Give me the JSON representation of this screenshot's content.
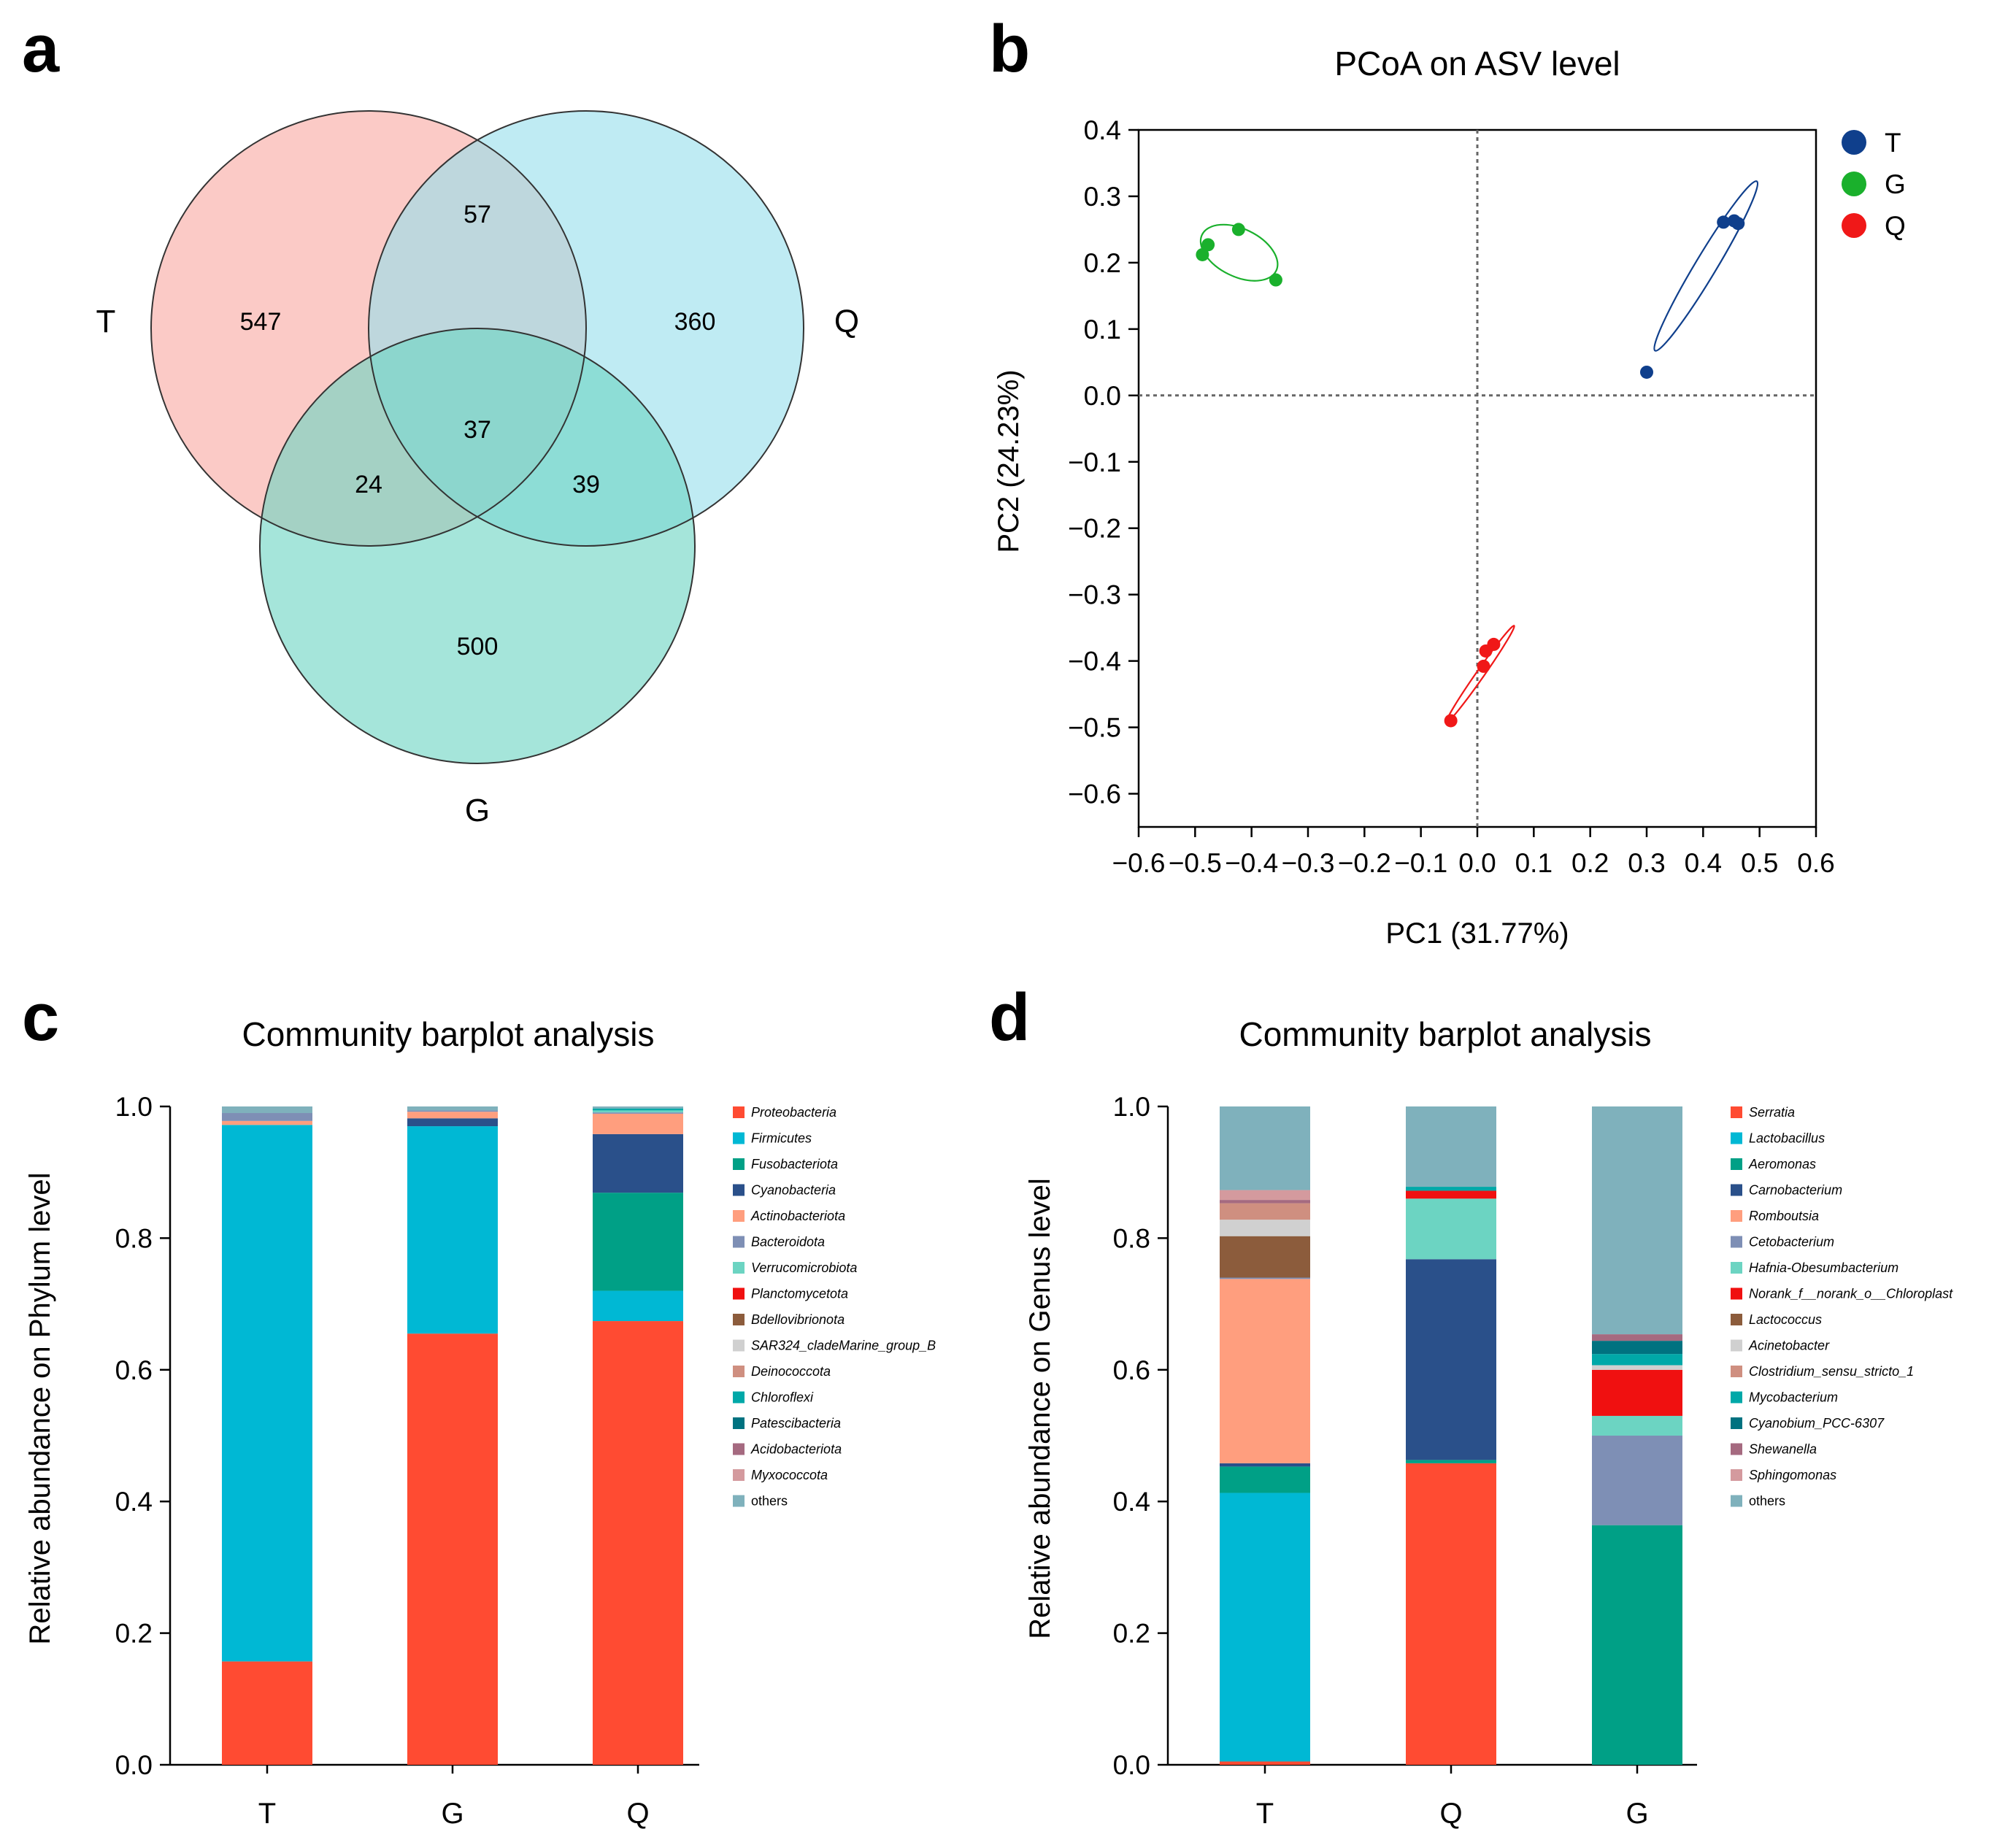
{
  "panels": {
    "a": {
      "letter": "a",
      "venn": {
        "sets": [
          {
            "label": "T",
            "color": "#F9A9A3"
          },
          {
            "label": "Q",
            "color": "#98DFEB"
          },
          {
            "label": "G",
            "color": "#6DD5C4"
          }
        ],
        "regions": {
          "T_only": "547",
          "Q_only": "360",
          "G_only": "500",
          "T_Q": "57",
          "T_G": "24",
          "Q_G": "39",
          "T_Q_G": "37"
        }
      }
    },
    "b": {
      "letter": "b",
      "chart_data": {
        "type": "scatter",
        "title": "PCoA on ASV level",
        "xlabel": "PC1 (31.77%)",
        "ylabel": "PC2 (24.23%)",
        "xlim": [
          -0.6,
          0.6
        ],
        "ylim": [
          -0.65,
          0.4
        ],
        "xticks": [
          -0.6,
          -0.5,
          -0.4,
          -0.3,
          -0.2,
          -0.1,
          0.0,
          0.1,
          0.2,
          0.3,
          0.4,
          0.5,
          0.6
        ],
        "xtick_labels": [
          "−0.6",
          "−0.5",
          "−0.4",
          "−0.3",
          "−0.2",
          "−0.1",
          "0.0",
          "0.1",
          "0.2",
          "0.3",
          "0.4",
          "0.5",
          "0.6"
        ],
        "yticks": [
          0.4,
          0.3,
          0.2,
          0.1,
          0.0,
          -0.1,
          -0.2,
          -0.3,
          -0.4,
          -0.5,
          -0.6
        ],
        "ytick_labels": [
          "0.4",
          "0.3",
          "0.2",
          "0.1",
          "0.0",
          "−0.1",
          "−0.2",
          "−0.3",
          "−0.4",
          "−0.5",
          "−0.6"
        ],
        "series": [
          {
            "name": "T",
            "color": "#0F3F8C",
            "points": [
              [
                0.3,
                0.035
              ],
              [
                0.436,
                0.261
              ],
              [
                0.455,
                0.263
              ],
              [
                0.462,
                0.259
              ]
            ],
            "ellipse": {
              "center": [
                0.405,
                0.195
              ],
              "semi_axes": [
                0.175,
                0.016
              ],
              "angle_deg": 59
            }
          },
          {
            "name": "G",
            "color": "#1AB02C",
            "points": [
              [
                -0.487,
                0.212
              ],
              [
                -0.477,
                0.227
              ],
              [
                -0.423,
                0.25
              ],
              [
                -0.357,
                0.174
              ]
            ],
            "ellipse": {
              "center": [
                -0.422,
                0.215
              ],
              "semi_axes": [
                0.073,
                0.036
              ],
              "angle_deg": -26
            }
          },
          {
            "name": "Q",
            "color": "#F01818",
            "points": [
              [
                -0.047,
                -0.49
              ],
              [
                0.011,
                -0.408
              ],
              [
                0.015,
                -0.385
              ],
              [
                0.029,
                -0.375
              ]
            ],
            "ellipse": {
              "center": [
                0.005,
                -0.42
              ],
              "semi_axes": [
                0.105,
                0.006
              ],
              "angle_deg": 55
            }
          }
        ]
      }
    },
    "c": {
      "letter": "c",
      "chart_data": {
        "type": "bar",
        "stacked": true,
        "title": "Community barplot analysis",
        "xlabel": "",
        "ylabel": "Relative abundance on Phylum level",
        "ylim": [
          0,
          1.0
        ],
        "yticks": [
          "0.0",
          "0.2",
          "0.4",
          "0.6",
          "0.8",
          "1.0"
        ],
        "categories": [
          "T",
          "G",
          "Q"
        ],
        "series": [
          {
            "name": "Proteobacteria",
            "color": "#FF4B32",
            "values": [
              0.157,
              0.655,
              0.674
            ]
          },
          {
            "name": "Firmicutes",
            "color": "#00B8D4",
            "values": [
              0.815,
              0.315,
              0.046
            ]
          },
          {
            "name": "Fusobacteriota",
            "color": "#00A086",
            "values": [
              0.0,
              0.0,
              0.149
            ]
          },
          {
            "name": "Cyanobacteria",
            "color": "#2A508A",
            "values": [
              0.0,
              0.012,
              0.089
            ]
          },
          {
            "name": "Actinobacteriota",
            "color": "#FF9E7E",
            "values": [
              0.006,
              0.01,
              0.031
            ]
          },
          {
            "name": "Bacteroidota",
            "color": "#7E8FB5",
            "values": [
              0.012,
              0.002,
              0.002
            ]
          },
          {
            "name": "Verrucomicrobiota",
            "color": "#6CD4C2",
            "values": [
              0.0,
              0.0,
              0.003
            ]
          },
          {
            "name": "Planctomycetota",
            "color": "#F01010",
            "values": [
              0.0,
              0.0,
              0.0
            ]
          },
          {
            "name": "Bdellovibrionota",
            "color": "#8C5C3C",
            "values": [
              0.0,
              0.0,
              0.0
            ]
          },
          {
            "name": "SAR324_cladeMarine_group_B",
            "color": "#D0D0D0",
            "values": [
              0.0,
              0.0,
              0.0
            ]
          },
          {
            "name": "Deinococcota",
            "color": "#CF8F80",
            "values": [
              0.0,
              0.0,
              0.0
            ]
          },
          {
            "name": "Chloroflexi",
            "color": "#00A8A8",
            "values": [
              0.0,
              0.0,
              0.003
            ]
          },
          {
            "name": "Patescibacteria",
            "color": "#007280",
            "values": [
              0.0,
              0.0,
              0.0
            ]
          },
          {
            "name": "Acidobacteriota",
            "color": "#A56A80",
            "values": [
              0.0,
              0.0,
              0.0
            ]
          },
          {
            "name": "Myxococcota",
            "color": "#D49A9E",
            "values": [
              0.0,
              0.0,
              0.0
            ]
          },
          {
            "name": "others",
            "color": "#7FB1BC",
            "values": [
              0.01,
              0.006,
              0.003
            ]
          }
        ]
      }
    },
    "d": {
      "letter": "d",
      "chart_data": {
        "type": "bar",
        "stacked": true,
        "title": "Community barplot analysis",
        "xlabel": "",
        "ylabel": "Relative abundance on Genus level",
        "ylim": [
          0,
          1.0
        ],
        "yticks": [
          "0.0",
          "0.2",
          "0.4",
          "0.6",
          "0.8",
          "1.0"
        ],
        "categories": [
          "T",
          "Q",
          "G"
        ],
        "series": [
          {
            "name": "Serratia",
            "color": "#FF4B32",
            "values": [
              0.005,
              0.458,
              0.0
            ]
          },
          {
            "name": "Lactobacillus",
            "color": "#00B8D4",
            "values": [
              0.408,
              0.0,
              0.0
            ]
          },
          {
            "name": "Aeromonas",
            "color": "#00A086",
            "values": [
              0.04,
              0.005,
              0.364
            ]
          },
          {
            "name": "Carnobacterium",
            "color": "#2A508A",
            "values": [
              0.005,
              0.305,
              0.0
            ]
          },
          {
            "name": "Romboutsia",
            "color": "#FF9E7E",
            "values": [
              0.28,
              0.0,
              0.0
            ]
          },
          {
            "name": "Cetobacterium",
            "color": "#7E8FB5",
            "values": [
              0.002,
              0.0,
              0.136
            ]
          },
          {
            "name": "Hafnia-Obesumbacterium",
            "color": "#6CD4C2",
            "values": [
              0.0,
              0.092,
              0.03
            ]
          },
          {
            "name": "Norank_f__norank_o__Chloroplast",
            "color": "#F01010",
            "values": [
              0.0,
              0.012,
              0.07
            ]
          },
          {
            "name": "Lactococcus",
            "color": "#8C5C3C",
            "values": [
              0.063,
              0.0,
              0.0
            ]
          },
          {
            "name": "Acinetobacter",
            "color": "#D0D0D0",
            "values": [
              0.025,
              0.0,
              0.007
            ]
          },
          {
            "name": "Clostridium_sensu_stricto_1",
            "color": "#CF8F80",
            "values": [
              0.025,
              0.0,
              0.0
            ]
          },
          {
            "name": "Mycobacterium",
            "color": "#00A8A8",
            "values": [
              0.0,
              0.006,
              0.017
            ]
          },
          {
            "name": "Cyanobium_PCC-6307",
            "color": "#007280",
            "values": [
              0.0,
              0.0,
              0.02
            ]
          },
          {
            "name": "Shewanella",
            "color": "#A56A80",
            "values": [
              0.005,
              0.0,
              0.01
            ]
          },
          {
            "name": "Sphingomonas",
            "color": "#D49A9E",
            "values": [
              0.015,
              0.0,
              0.0
            ]
          },
          {
            "name": "others",
            "color": "#7FB1BC",
            "values": [
              0.127,
              0.122,
              0.346
            ]
          }
        ]
      }
    }
  }
}
